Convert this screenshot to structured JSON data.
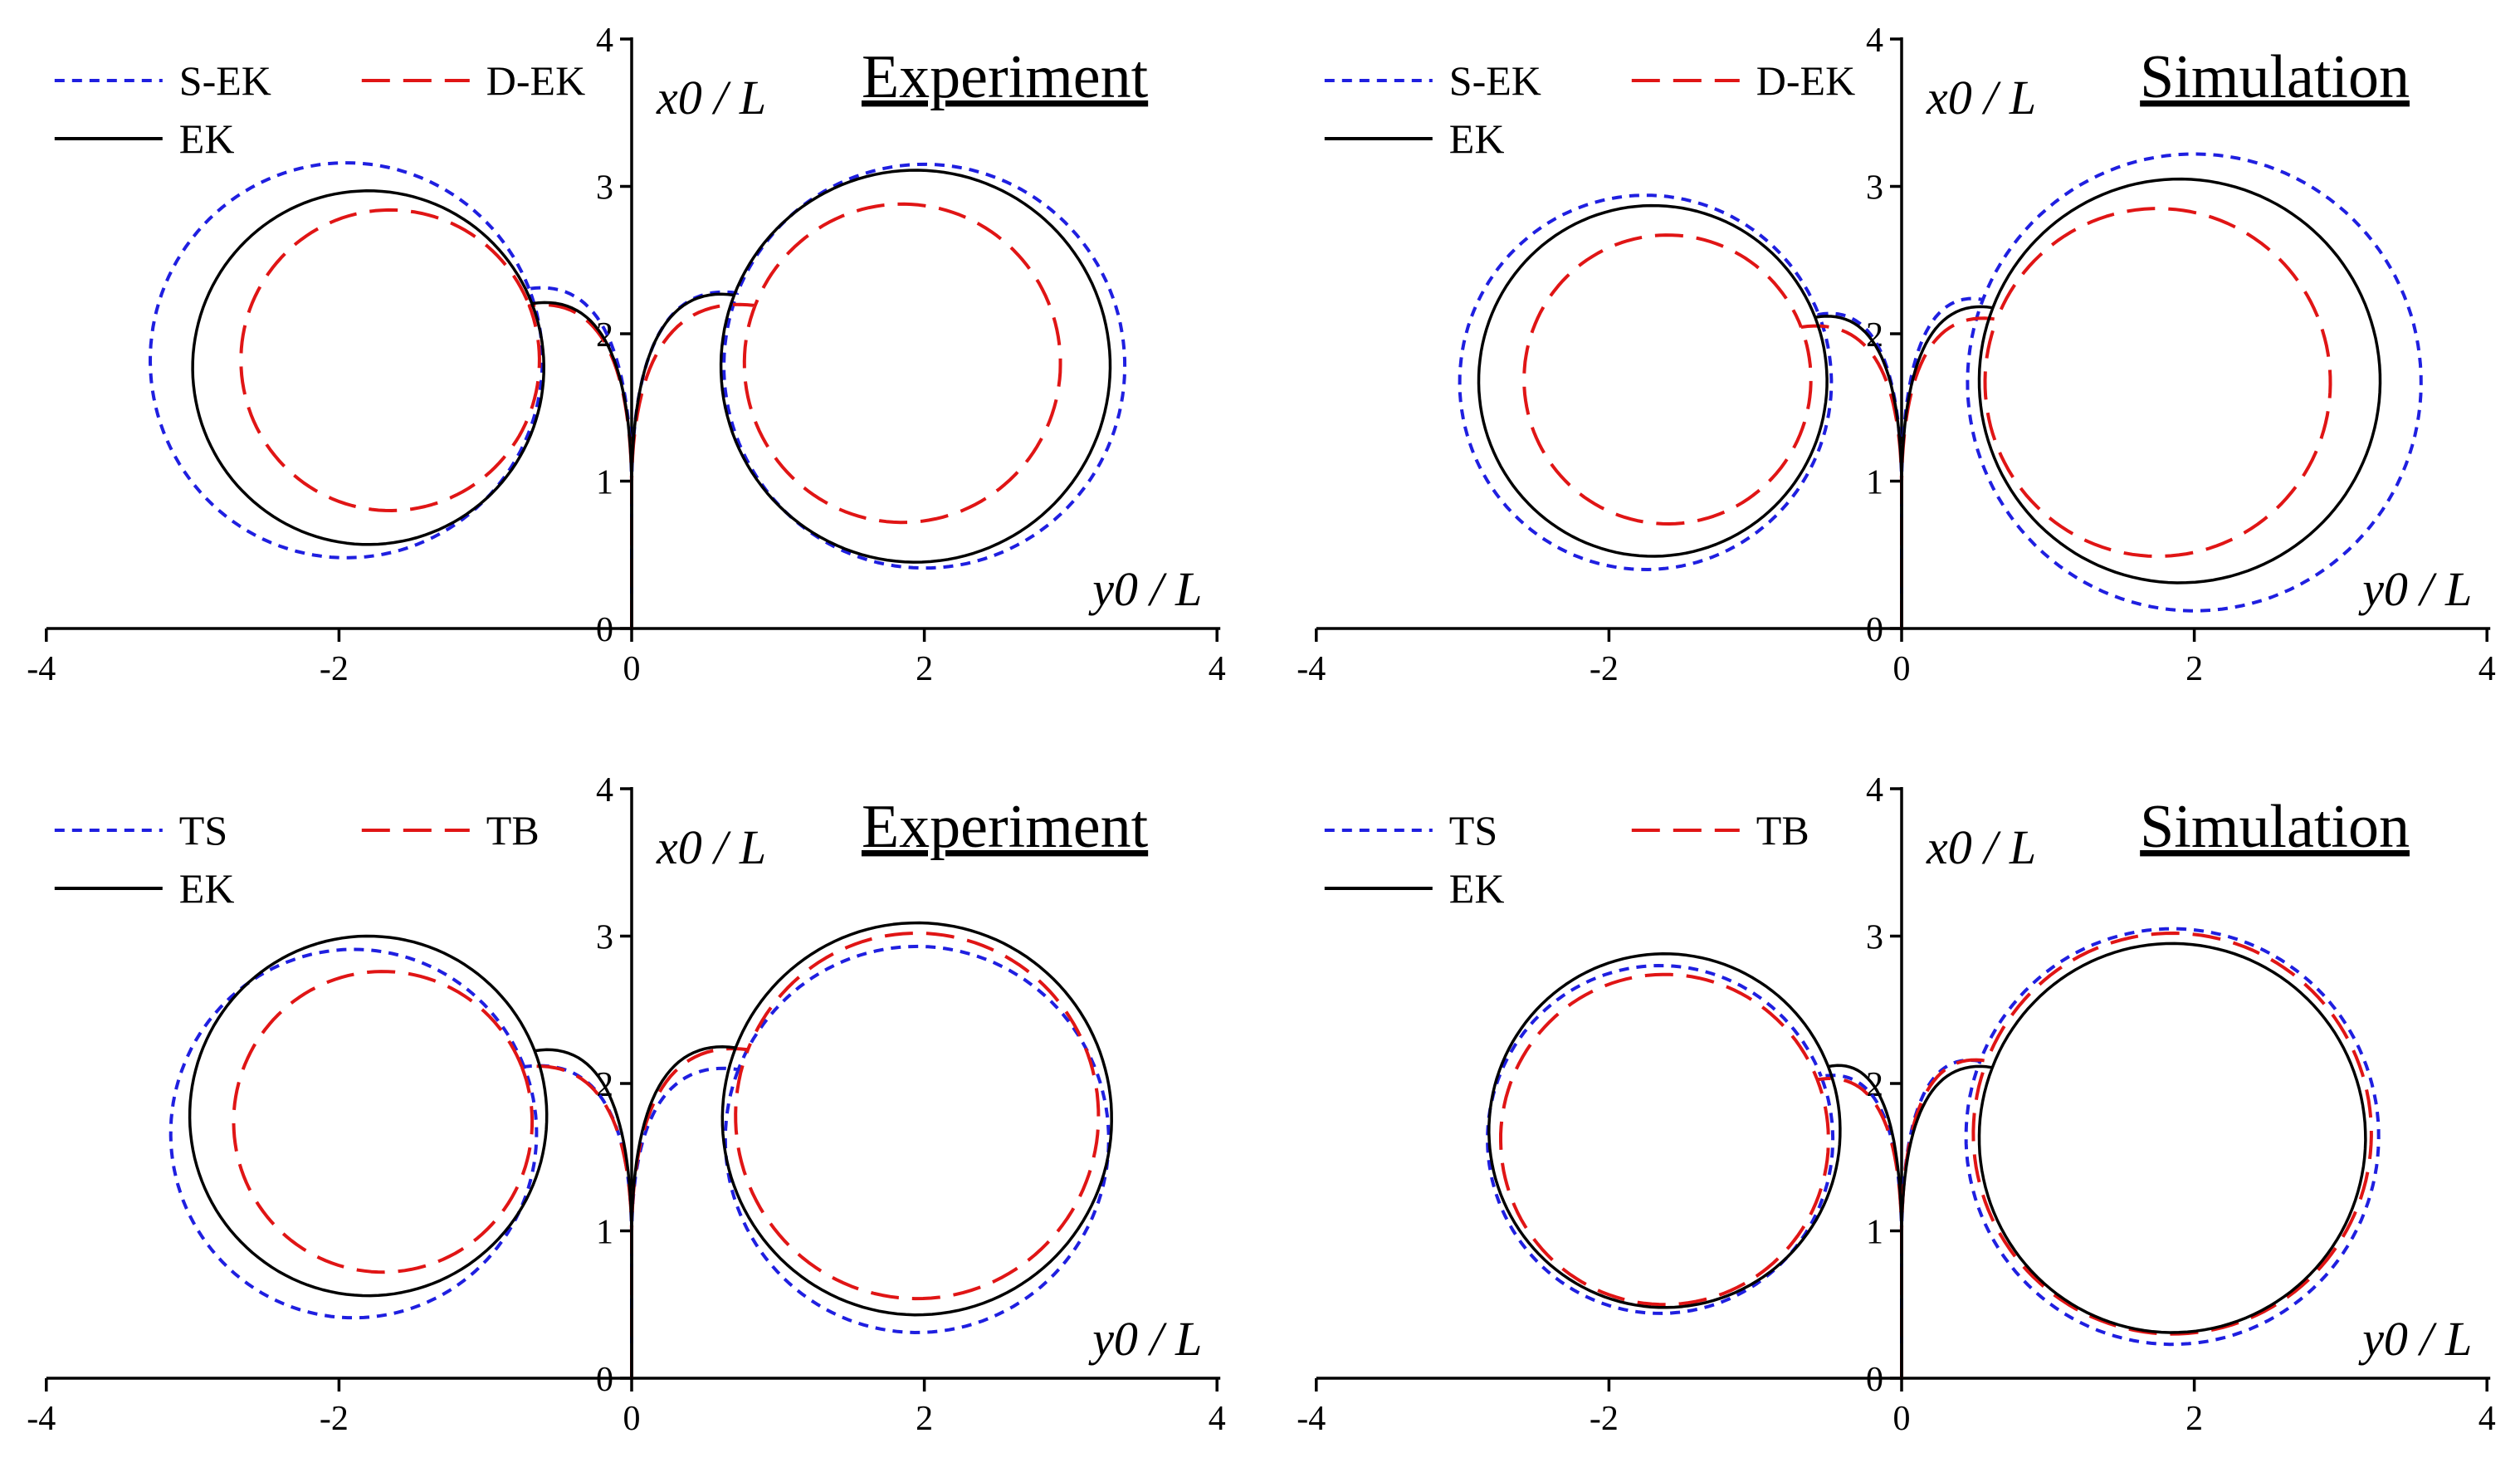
{
  "chart_data": [
    {
      "type": "line",
      "title": "Experiment",
      "xlabel": "y0 / L",
      "ylabel": "x0 / L",
      "xlim": [
        -4,
        4
      ],
      "ylim": [
        0,
        4
      ],
      "xticks": [
        "-4",
        "-2",
        "0",
        "2",
        "4"
      ],
      "yticks": [
        "0",
        "1",
        "2",
        "3",
        "4"
      ],
      "legend": "top-left",
      "series": [
        {
          "name": "S-EK",
          "style": "dotted",
          "color": "#1f1fe0",
          "loops": [
            {
              "cx": -1.95,
              "cy": 1.82,
              "r": 1.34
            },
            {
              "cx": 2.0,
              "cy": 1.78,
              "r": 1.37
            }
          ]
        },
        {
          "name": "D-EK",
          "style": "dashed",
          "color": "#e01515",
          "loops": [
            {
              "cx": -1.65,
              "cy": 1.82,
              "r": 1.02
            },
            {
              "cx": 1.85,
              "cy": 1.8,
              "r": 1.08
            }
          ]
        },
        {
          "name": "EK",
          "style": "solid",
          "color": "#000000",
          "loops": [
            {
              "cx": -1.8,
              "cy": 1.77,
              "r": 1.2
            },
            {
              "cx": 1.94,
              "cy": 1.78,
              "r": 1.33
            }
          ]
        }
      ]
    },
    {
      "type": "line",
      "title": "Simulation",
      "xlabel": "y0 / L",
      "ylabel": "x0 / L",
      "xlim": [
        -4,
        4
      ],
      "ylim": [
        0,
        4
      ],
      "xticks": [
        "-4",
        "-2",
        "0",
        "2",
        "4"
      ],
      "yticks": [
        "0",
        "1",
        "2",
        "3",
        "4"
      ],
      "legend": "top-left",
      "series": [
        {
          "name": "S-EK",
          "style": "dotted",
          "color": "#1f1fe0",
          "loops": [
            {
              "cx": -1.75,
              "cy": 1.67,
              "r": 1.27
            },
            {
              "cx": 2.0,
              "cy": 1.67,
              "r": 1.55
            }
          ]
        },
        {
          "name": "D-EK",
          "style": "dashed",
          "color": "#e01515",
          "loops": [
            {
              "cx": -1.6,
              "cy": 1.69,
              "r": 0.98
            },
            {
              "cx": 1.75,
              "cy": 1.67,
              "r": 1.18
            }
          ]
        },
        {
          "name": "EK",
          "style": "solid",
          "color": "#000000",
          "loops": [
            {
              "cx": -1.7,
              "cy": 1.68,
              "r": 1.19
            },
            {
              "cx": 1.9,
              "cy": 1.68,
              "r": 1.37
            }
          ]
        }
      ]
    },
    {
      "type": "line",
      "title": "Experiment",
      "xlabel": "y0 / L",
      "ylabel": "x0 / L",
      "xlim": [
        -4,
        4
      ],
      "ylim": [
        0,
        4
      ],
      "xticks": [
        "-4",
        "-2",
        "0",
        "2",
        "4"
      ],
      "yticks": [
        "0",
        "1",
        "2",
        "3",
        "4"
      ],
      "legend": "top-left",
      "series": [
        {
          "name": "TS",
          "style": "dotted",
          "color": "#1f1fe0",
          "loops": [
            {
              "cx": -1.9,
              "cy": 1.66,
              "r": 1.25
            },
            {
              "cx": 1.95,
              "cy": 1.62,
              "r": 1.31
            }
          ]
        },
        {
          "name": "TB",
          "style": "dashed",
          "color": "#e01515",
          "loops": [
            {
              "cx": -1.7,
              "cy": 1.74,
              "r": 1.02
            },
            {
              "cx": 1.95,
              "cy": 1.78,
              "r": 1.24
            }
          ]
        },
        {
          "name": "EK",
          "style": "solid",
          "color": "#000000",
          "loops": [
            {
              "cx": -1.8,
              "cy": 1.78,
              "r": 1.22
            },
            {
              "cx": 1.95,
              "cy": 1.76,
              "r": 1.33
            }
          ]
        }
      ]
    },
    {
      "type": "line",
      "title": "Simulation",
      "xlabel": "y0 / L",
      "ylabel": "x0 / L",
      "xlim": [
        -4,
        4
      ],
      "ylim": [
        0,
        4
      ],
      "xticks": [
        "-4",
        "-2",
        "0",
        "2",
        "4"
      ],
      "yticks": [
        "0",
        "1",
        "2",
        "3",
        "4"
      ],
      "legend": "top-left",
      "series": [
        {
          "name": "TS",
          "style": "dotted",
          "color": "#1f1fe0",
          "loops": [
            {
              "cx": -1.65,
              "cy": 1.62,
              "r": 1.18
            },
            {
              "cx": 1.85,
              "cy": 1.64,
              "r": 1.41
            }
          ]
        },
        {
          "name": "TB",
          "style": "dashed",
          "color": "#e01515",
          "loops": [
            {
              "cx": -1.62,
              "cy": 1.62,
              "r": 1.12
            },
            {
              "cx": 1.85,
              "cy": 1.66,
              "r": 1.36
            }
          ]
        },
        {
          "name": "EK",
          "style": "solid",
          "color": "#000000",
          "loops": [
            {
              "cx": -1.62,
              "cy": 1.68,
              "r": 1.2
            },
            {
              "cx": 1.85,
              "cy": 1.63,
              "r": 1.32
            }
          ]
        }
      ]
    }
  ]
}
